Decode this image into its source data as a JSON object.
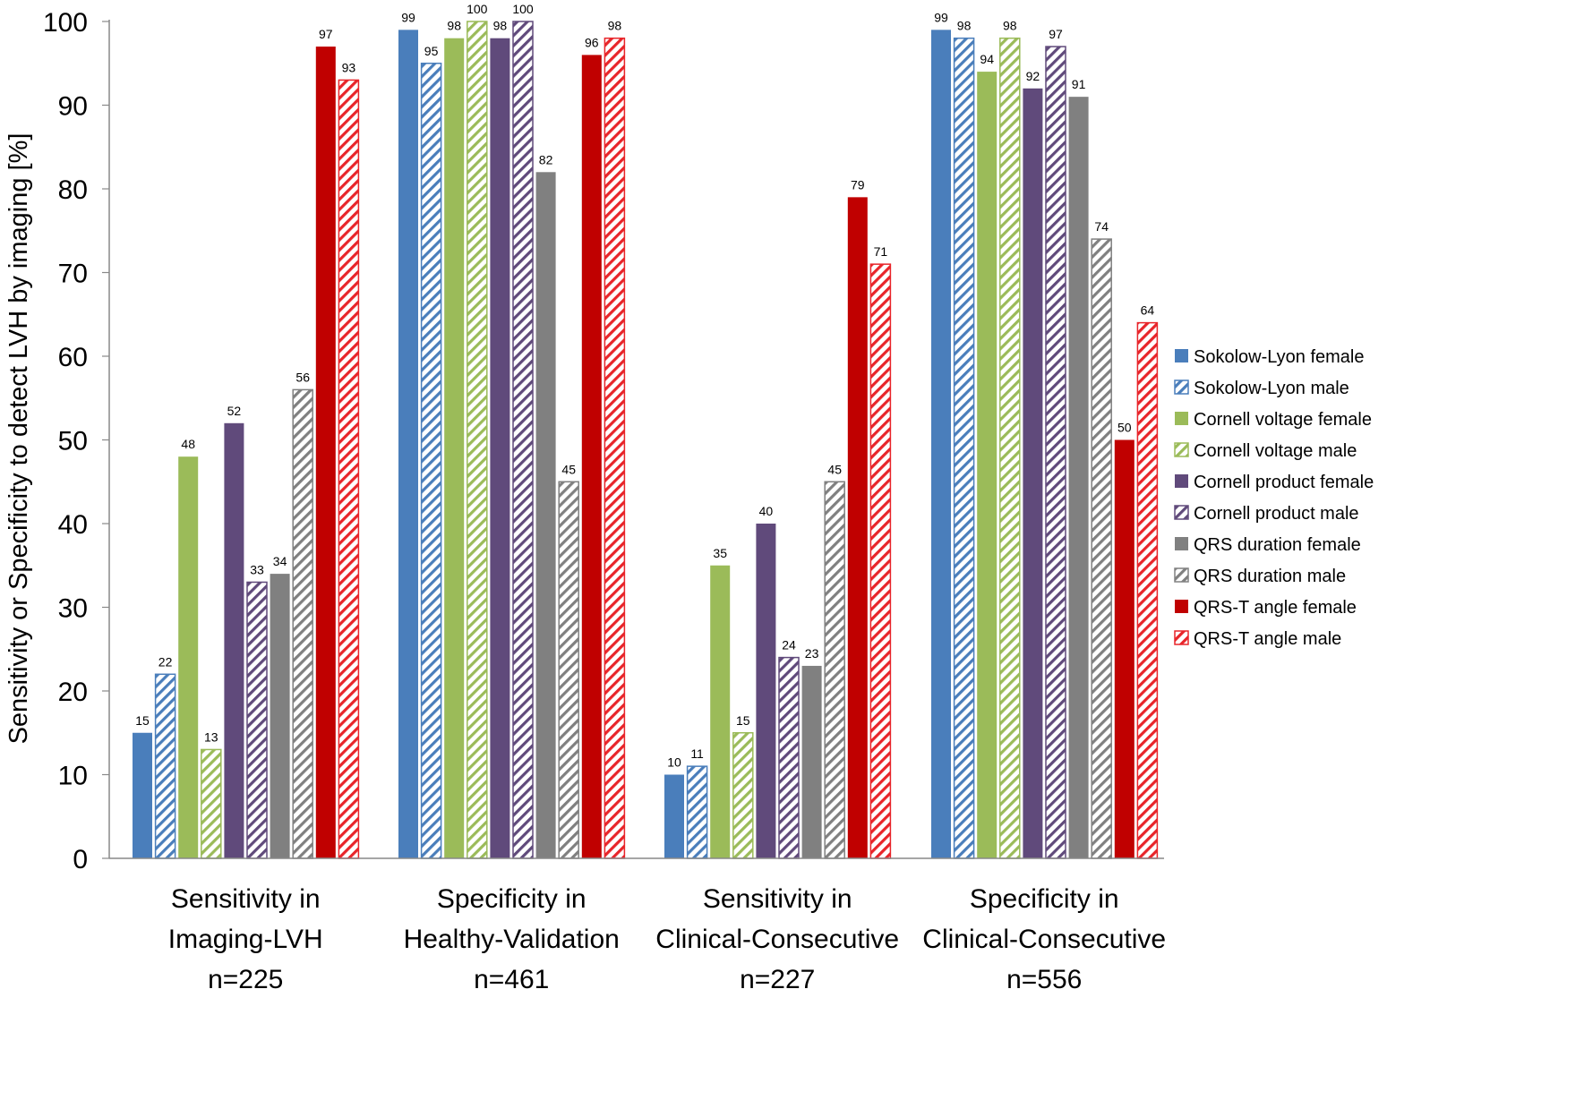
{
  "chart_data": {
    "type": "bar",
    "title": "",
    "xlabel": "",
    "ylabel": "Sensitivity or Specificity to detect LVH by imaging [%]",
    "ylim": [
      0,
      100
    ],
    "yticks": [
      0,
      10,
      20,
      30,
      40,
      50,
      60,
      70,
      80,
      90,
      100
    ],
    "grid": false,
    "legend_position": "right",
    "categories": [
      [
        "Sensitivity in",
        "Imaging-LVH",
        "n=225"
      ],
      [
        "Specificity in",
        "Healthy-Validation",
        "n=461"
      ],
      [
        "Sensitivity in",
        "Clinical-Consecutive",
        "n=227"
      ],
      [
        "Specificity in",
        "Clinical-Consecutive",
        "n=556"
      ]
    ],
    "series": [
      {
        "name": "Sokolow-Lyon female",
        "color": "#4a7ebb",
        "pattern": "solid",
        "values": [
          15,
          99,
          10,
          99
        ]
      },
      {
        "name": "Sokolow-Lyon male",
        "color": "#4a7ebb",
        "pattern": "hatch",
        "values": [
          22,
          95,
          11,
          98
        ]
      },
      {
        "name": "Cornell voltage female",
        "color": "#9bbb59",
        "pattern": "solid",
        "values": [
          48,
          98,
          35,
          94
        ]
      },
      {
        "name": "Cornell voltage male",
        "color": "#9bbb59",
        "pattern": "hatch",
        "values": [
          13,
          100,
          15,
          98
        ]
      },
      {
        "name": "Cornell product female",
        "color": "#604a7b",
        "pattern": "solid",
        "values": [
          52,
          98,
          40,
          92
        ]
      },
      {
        "name": "Cornell product male",
        "color": "#604a7b",
        "pattern": "hatch",
        "values": [
          33,
          100,
          24,
          97
        ]
      },
      {
        "name": "QRS duration female",
        "color": "#808080",
        "pattern": "solid",
        "values": [
          34,
          82,
          23,
          91
        ]
      },
      {
        "name": "QRS duration male",
        "color": "#808080",
        "pattern": "hatch",
        "values": [
          56,
          45,
          45,
          74
        ]
      },
      {
        "name": "QRS-T angle female",
        "color": "#c00000",
        "pattern": "solid",
        "values": [
          97,
          96,
          79,
          50
        ]
      },
      {
        "name": "QRS-T angle male",
        "color": "#e8252a",
        "pattern": "hatch",
        "values": [
          93,
          98,
          71,
          64
        ]
      }
    ]
  }
}
